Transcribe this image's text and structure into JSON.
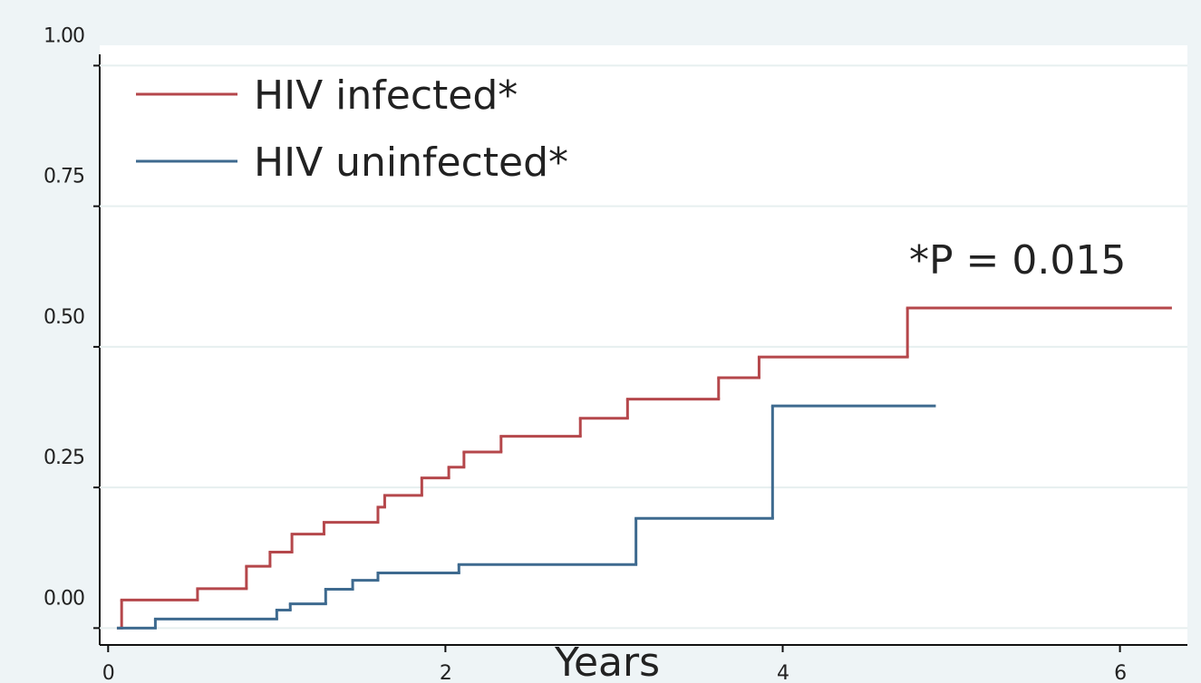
{
  "chart_data": {
    "type": "step",
    "x_label": "Years",
    "annotation": "*P = 0.015",
    "xlim": [
      -0.05,
      6.4
    ],
    "ylim": [
      -0.03,
      1.02
    ],
    "xticks": [
      0,
      2,
      4,
      6
    ],
    "yticks": [
      {
        "value": 0,
        "label": "0.00"
      },
      {
        "value": 0.25,
        "label": "0.25"
      },
      {
        "value": 0.5,
        "label": "0.50"
      },
      {
        "value": 0.75,
        "label": "0.75"
      },
      {
        "value": 1,
        "label": "1.00"
      }
    ],
    "grid": true,
    "legend": "upper left",
    "series": [
      {
        "name": "HIV infected*",
        "color": "#b5474b",
        "x": [
          0.06,
          0.08,
          0.53,
          0.82,
          0.96,
          1.09,
          1.28,
          1.6,
          1.64,
          1.86,
          2.02,
          2.11,
          2.33,
          2.8,
          3.08,
          3.62,
          3.86,
          4.74,
          6.3
        ],
        "values": [
          0,
          0.05,
          0.07,
          0.11,
          0.135,
          0.167,
          0.188,
          0.215,
          0.236,
          0.267,
          0.286,
          0.313,
          0.341,
          0.373,
          0.407,
          0.445,
          0.482,
          0.569,
          0.569
        ]
      },
      {
        "name": "HIV uninfected*",
        "color": "#3e6a8f",
        "x": [
          0.06,
          0.28,
          1.0,
          1.08,
          1.29,
          1.45,
          1.6,
          2.08,
          3.13,
          3.94,
          4.9
        ],
        "values": [
          0,
          0.016,
          0.032,
          0.043,
          0.069,
          0.085,
          0.098,
          0.113,
          0.195,
          0.395,
          0.395
        ]
      }
    ]
  }
}
